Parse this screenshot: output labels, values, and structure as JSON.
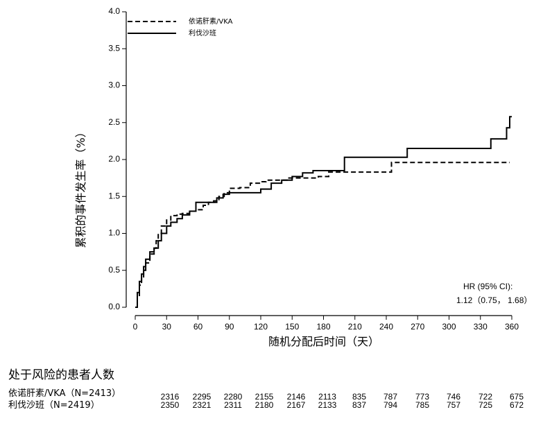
{
  "chart_data": {
    "type": "line",
    "step": true,
    "xlabel": "随机分配后时间（天）",
    "ylabel": "累积的事件发生率（%）",
    "xlim": [
      0,
      360
    ],
    "ylim": [
      0,
      4.0
    ],
    "xticks": [
      0,
      30,
      60,
      90,
      120,
      150,
      180,
      210,
      240,
      270,
      300,
      330,
      360
    ],
    "yticks": [
      "0.0",
      "0.5",
      "1.0",
      "1.5",
      "2.0",
      "2.5",
      "3.0",
      "3.5",
      "4.0"
    ],
    "legend_position": "top-left",
    "series": [
      {
        "name": "依诺肝素/VKA",
        "style": "dashed",
        "x": [
          0,
          2,
          4,
          6,
          8,
          10,
          14,
          18,
          20,
          22,
          25,
          30,
          34,
          40,
          45,
          52,
          58,
          65,
          70,
          75,
          80,
          85,
          90,
          100,
          110,
          120,
          125,
          135,
          145,
          160,
          175,
          185,
          205,
          245,
          262,
          358
        ],
        "y": [
          0,
          0.15,
          0.3,
          0.4,
          0.5,
          0.6,
          0.72,
          0.8,
          0.9,
          1.0,
          1.1,
          1.18,
          1.24,
          1.26,
          1.27,
          1.3,
          1.32,
          1.38,
          1.42,
          1.44,
          1.5,
          1.55,
          1.61,
          1.62,
          1.68,
          1.7,
          1.72,
          1.72,
          1.75,
          1.75,
          1.77,
          1.83,
          1.83,
          1.96,
          1.96,
          1.96
        ]
      },
      {
        "name": "利伐沙班",
        "style": "solid",
        "x": [
          0,
          2,
          4,
          6,
          8,
          10,
          14,
          18,
          22,
          25,
          30,
          34,
          40,
          45,
          52,
          58,
          70,
          78,
          84,
          90,
          100,
          110,
          120,
          130,
          140,
          150,
          160,
          170,
          200,
          260,
          340,
          355,
          358,
          360
        ],
        "y": [
          0,
          0.2,
          0.35,
          0.45,
          0.55,
          0.65,
          0.75,
          0.8,
          0.9,
          1.0,
          1.1,
          1.15,
          1.2,
          1.25,
          1.3,
          1.42,
          1.42,
          1.48,
          1.53,
          1.55,
          1.55,
          1.55,
          1.6,
          1.68,
          1.72,
          1.77,
          1.82,
          1.85,
          2.03,
          2.15,
          2.28,
          2.43,
          2.58,
          2.58
        ]
      }
    ],
    "annotation": [
      "HR (95% CI):",
      "1.12（0.75， 1.68）"
    ]
  },
  "risk_table": {
    "title": "处于风险的患者人数",
    "rows": [
      {
        "label": "依诺肝素/VKA（N=2413）",
        "values": [
          "2316",
          "2295",
          "2280",
          "2155",
          "2146",
          "2113",
          "835",
          "787",
          "773",
          "746",
          "722",
          "675"
        ]
      },
      {
        "label": "利伐沙班（N=2419）",
        "values": [
          "2350",
          "2321",
          "2311",
          "2180",
          "2167",
          "2133",
          "837",
          "794",
          "785",
          "757",
          "725",
          "672"
        ]
      }
    ]
  }
}
